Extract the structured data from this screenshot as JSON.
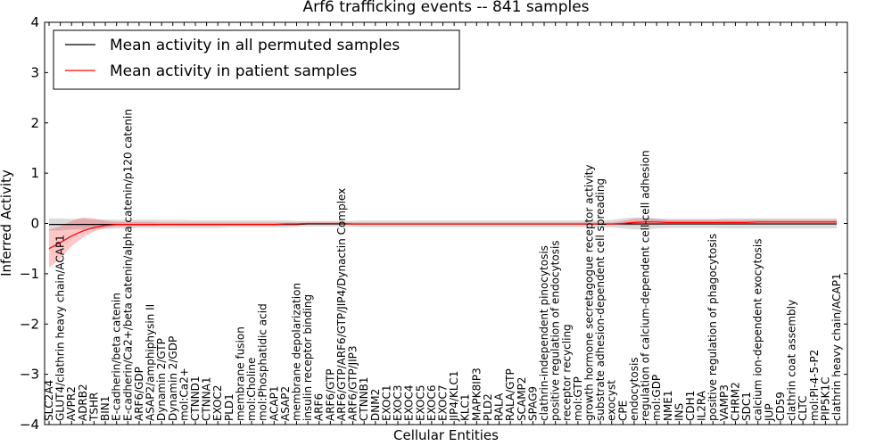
{
  "chart_data": {
    "type": "line",
    "title": "Arf6 trafficking events -- 841 samples",
    "xlabel": "Cellular Entities",
    "ylabel": "Inferred Activity",
    "ylim": [
      -4,
      4
    ],
    "yticks": [
      {
        "value": -4,
        "label": "−4"
      },
      {
        "value": -3,
        "label": "−3"
      },
      {
        "value": -2,
        "label": "−2"
      },
      {
        "value": -1,
        "label": "−1"
      },
      {
        "value": 0,
        "label": "0"
      },
      {
        "value": 1,
        "label": "1"
      },
      {
        "value": 2,
        "label": "2"
      },
      {
        "value": 3,
        "label": "3"
      },
      {
        "value": 4,
        "label": "4"
      }
    ],
    "categories": [
      "SLC2A4",
      "GLUT4/clathrin heavy chain/ACAP1",
      "AVPR2",
      "ADRB2",
      "TSHR",
      "BIN1",
      "E-cadherin/beta catenin",
      "E-cadherin/Ca2+/beta catenin/alpha catenin/p120 catenin",
      "ARF6/GDP",
      "ASAP2/amphiphysin II",
      "Dynamin 2/GTP",
      "Dynamin 2/GDP",
      "mol:Ca2+",
      "CTNND1",
      "CTNNA1",
      "EXOC2",
      "PLD1",
      "membrane fusion",
      "mol:Choline",
      "mol:Phosphatidic acid",
      "ACAP1",
      "ASAP2",
      "membrane depolarization",
      "insulin receptor binding",
      "ARF6",
      "ARF6/GTP",
      "ARF6/GTP/ARF6/GTP/JIP4/Dynactin Complex",
      "ARF6/GTP/JIP3",
      "CTNNB1",
      "DNM2",
      "EXOC1",
      "EXOC3",
      "EXOC4",
      "EXOC5",
      "EXOC6",
      "EXOC7",
      "JIP4/KLC1",
      "KLC1",
      "MAPK8IP3",
      "PLD2",
      "RALA",
      "RALA/GTP",
      "SCAMP2",
      "SPAG9",
      "clathrin-independent pinocytosis",
      "positive regulation of endocytosis",
      "receptor recycling",
      "mol:GTP",
      "growth hormone secretagogue receptor activity",
      "substrate adhesion-dependent cell spreading",
      "exocyst",
      "CPE",
      "endocytosis",
      "regulation of calcium-dependent cell-cell adhesion",
      "mol:GDP",
      "NME1",
      "INS",
      "CDH1",
      "IL2RA",
      "positive regulation of phagocytosis",
      "VAMP3",
      "CHRM2",
      "SDC1",
      "calcium ion-dependent exocytosis",
      "JUP",
      "CD59",
      "clathrin coat assembly",
      "CLTC",
      "mol:PI-4-5-P2",
      "PIP5K1C",
      "clathrin heavy chain/ACAP1"
    ],
    "series": [
      {
        "name": "Mean activity in all permuted samples",
        "color": "#000000",
        "values": [
          -0.02,
          -0.02,
          -0.02,
          -0.02,
          -0.02,
          -0.02,
          -0.02,
          -0.02,
          -0.02,
          -0.02,
          -0.02,
          -0.02,
          -0.02,
          -0.02,
          -0.02,
          -0.02,
          -0.02,
          -0.02,
          -0.02,
          -0.02,
          -0.02,
          -0.02,
          -0.02,
          -0.01,
          -0.01,
          -0.01,
          -0.01,
          -0.01,
          -0.01,
          -0.01,
          -0.01,
          -0.01,
          -0.01,
          -0.01,
          -0.01,
          -0.01,
          -0.01,
          -0.01,
          -0.01,
          -0.01,
          -0.01,
          -0.01,
          -0.01,
          -0.01,
          -0.01,
          -0.01,
          -0.01,
          -0.01,
          -0.01,
          -0.01,
          -0.01,
          -0.01,
          -0.01,
          -0.01,
          -0.01,
          -0.01,
          -0.01,
          -0.01,
          -0.01,
          -0.01,
          -0.01,
          -0.01,
          -0.01,
          -0.01,
          -0.01,
          -0.01,
          -0.01,
          -0.01,
          -0.01,
          -0.01,
          -0.01
        ],
        "band_lower": [
          -0.14,
          -0.14,
          -0.12,
          -0.12,
          -0.11,
          -0.11,
          -0.1,
          -0.1,
          -0.09,
          -0.09,
          -0.09,
          -0.09,
          -0.09,
          -0.09,
          -0.09,
          -0.09,
          -0.08,
          -0.08,
          -0.08,
          -0.08,
          -0.08,
          -0.08,
          -0.07,
          -0.06,
          -0.06,
          -0.06,
          -0.06,
          -0.07,
          -0.08,
          -0.08,
          -0.08,
          -0.08,
          -0.08,
          -0.08,
          -0.08,
          -0.08,
          -0.08,
          -0.08,
          -0.08,
          -0.08,
          -0.08,
          -0.08,
          -0.08,
          -0.08,
          -0.08,
          -0.08,
          -0.08,
          -0.08,
          -0.08,
          -0.08,
          -0.08,
          -0.1,
          -0.12,
          -0.12,
          -0.1,
          -0.09,
          -0.09,
          -0.09,
          -0.09,
          -0.09,
          -0.1,
          -0.1,
          -0.1,
          -0.1,
          -0.1,
          -0.1,
          -0.1,
          -0.1,
          -0.1,
          -0.1,
          -0.1
        ],
        "band_upper": [
          0.1,
          0.1,
          0.09,
          0.09,
          0.08,
          0.08,
          0.07,
          0.07,
          0.07,
          0.07,
          0.07,
          0.07,
          0.07,
          0.06,
          0.06,
          0.06,
          0.06,
          0.06,
          0.06,
          0.06,
          0.06,
          0.06,
          0.05,
          0.05,
          0.05,
          0.05,
          0.05,
          0.05,
          0.06,
          0.06,
          0.06,
          0.06,
          0.06,
          0.06,
          0.06,
          0.06,
          0.06,
          0.06,
          0.06,
          0.06,
          0.06,
          0.06,
          0.06,
          0.06,
          0.06,
          0.06,
          0.06,
          0.06,
          0.06,
          0.06,
          0.07,
          0.1,
          0.12,
          0.12,
          0.1,
          0.09,
          0.09,
          0.09,
          0.09,
          0.09,
          0.1,
          0.1,
          0.1,
          0.1,
          0.1,
          0.1,
          0.1,
          0.1,
          0.1,
          0.1,
          0.1
        ]
      },
      {
        "name": "Mean activity in patient samples",
        "color": "#ff0000",
        "values": [
          -0.5,
          -0.38,
          -0.25,
          -0.15,
          -0.08,
          -0.04,
          -0.02,
          -0.02,
          -0.02,
          -0.02,
          -0.02,
          -0.02,
          -0.02,
          -0.02,
          -0.02,
          -0.02,
          -0.02,
          -0.02,
          -0.02,
          -0.02,
          -0.02,
          -0.01,
          -0.01,
          0.0,
          0.0,
          0.0,
          0.0,
          -0.01,
          -0.01,
          -0.01,
          -0.01,
          -0.01,
          -0.01,
          -0.01,
          -0.01,
          -0.01,
          -0.01,
          -0.01,
          -0.01,
          -0.01,
          -0.01,
          -0.01,
          -0.01,
          -0.01,
          -0.01,
          -0.01,
          -0.01,
          -0.01,
          -0.01,
          -0.01,
          -0.01,
          0.0,
          0.02,
          0.03,
          0.03,
          0.02,
          0.02,
          0.02,
          0.02,
          0.02,
          0.02,
          0.02,
          0.02,
          0.03,
          0.03,
          0.03,
          0.03,
          0.03,
          0.03,
          0.03,
          0.03
        ],
        "band_lower": [
          -0.88,
          -0.7,
          -0.45,
          -0.28,
          -0.16,
          -0.09,
          -0.06,
          -0.05,
          -0.05,
          -0.05,
          -0.04,
          -0.04,
          -0.04,
          -0.04,
          -0.04,
          -0.04,
          -0.04,
          -0.04,
          -0.04,
          -0.04,
          -0.04,
          -0.03,
          -0.03,
          -0.02,
          -0.02,
          -0.02,
          -0.02,
          -0.03,
          -0.03,
          -0.03,
          -0.03,
          -0.03,
          -0.03,
          -0.03,
          -0.03,
          -0.03,
          -0.03,
          -0.03,
          -0.03,
          -0.03,
          -0.03,
          -0.03,
          -0.03,
          -0.03,
          -0.03,
          -0.03,
          -0.03,
          -0.03,
          -0.03,
          -0.03,
          -0.03,
          -0.04,
          -0.04,
          -0.03,
          -0.03,
          -0.02,
          -0.02,
          -0.02,
          -0.02,
          -0.02,
          -0.02,
          -0.02,
          -0.02,
          -0.01,
          -0.01,
          -0.01,
          -0.01,
          -0.01,
          -0.01,
          -0.01,
          -0.01
        ],
        "band_upper": [
          -0.12,
          -0.06,
          0.05,
          0.12,
          0.1,
          0.05,
          0.03,
          0.03,
          0.03,
          0.03,
          0.02,
          0.02,
          0.02,
          0.02,
          0.02,
          0.02,
          0.02,
          0.02,
          0.02,
          0.02,
          0.02,
          0.02,
          0.02,
          0.02,
          0.02,
          0.02,
          0.02,
          0.02,
          0.02,
          0.02,
          0.02,
          0.02,
          0.02,
          0.02,
          0.02,
          0.02,
          0.02,
          0.02,
          0.02,
          0.02,
          0.02,
          0.02,
          0.02,
          0.02,
          0.02,
          0.02,
          0.02,
          0.02,
          0.02,
          0.02,
          0.02,
          0.05,
          0.09,
          0.1,
          0.09,
          0.07,
          0.07,
          0.07,
          0.07,
          0.07,
          0.07,
          0.07,
          0.07,
          0.07,
          0.07,
          0.07,
          0.07,
          0.07,
          0.07,
          0.07,
          0.07
        ]
      }
    ],
    "legend": {
      "position": "top-left"
    }
  }
}
